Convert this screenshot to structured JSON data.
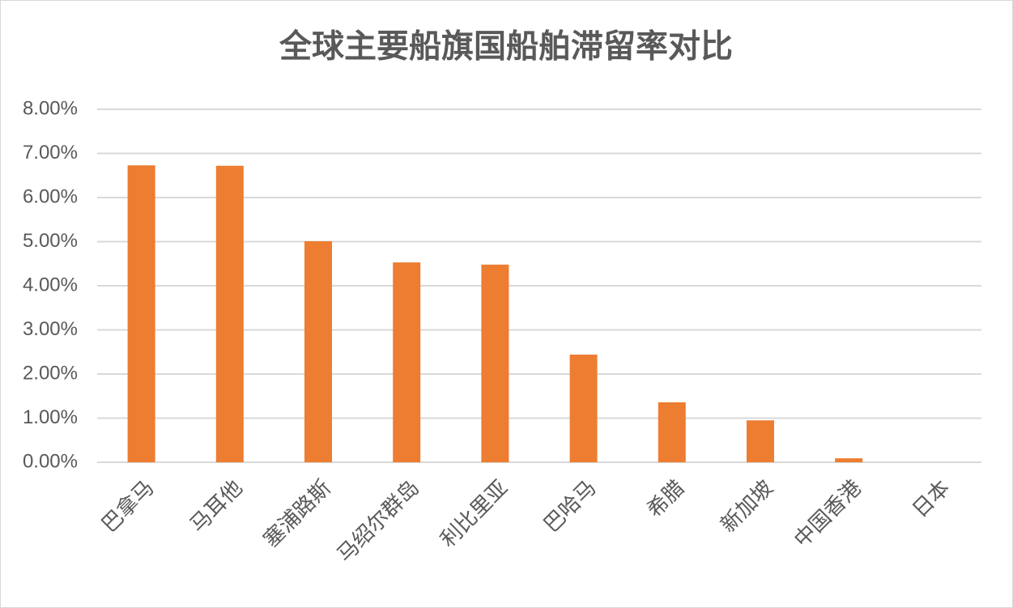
{
  "chart_data": {
    "type": "bar",
    "title": "全球主要船旗国船舶滞留率对比",
    "categories": [
      "巴拿马",
      "马耳他",
      "塞浦路斯",
      "马绍尔群岛",
      "利比里亚",
      "巴哈马",
      "希腊",
      "新加坡",
      "中国香港",
      "日本"
    ],
    "values": [
      6.73,
      6.72,
      5.01,
      4.53,
      4.48,
      2.44,
      1.36,
      0.95,
      0.09,
      0
    ],
    "color": "#ed7d31",
    "ylim": [
      0,
      8
    ],
    "yticks": [
      {
        "value": 0,
        "label": "0.00%"
      },
      {
        "value": 1,
        "label": "1.00%"
      },
      {
        "value": 2,
        "label": "2.00%"
      },
      {
        "value": 3,
        "label": "3.00%"
      },
      {
        "value": 4,
        "label": "4.00%"
      },
      {
        "value": 5,
        "label": "5.00%"
      },
      {
        "value": 6,
        "label": "6.00%"
      },
      {
        "value": 7,
        "label": "7.00%"
      },
      {
        "value": 8,
        "label": "8.00%"
      }
    ],
    "grid": true
  }
}
